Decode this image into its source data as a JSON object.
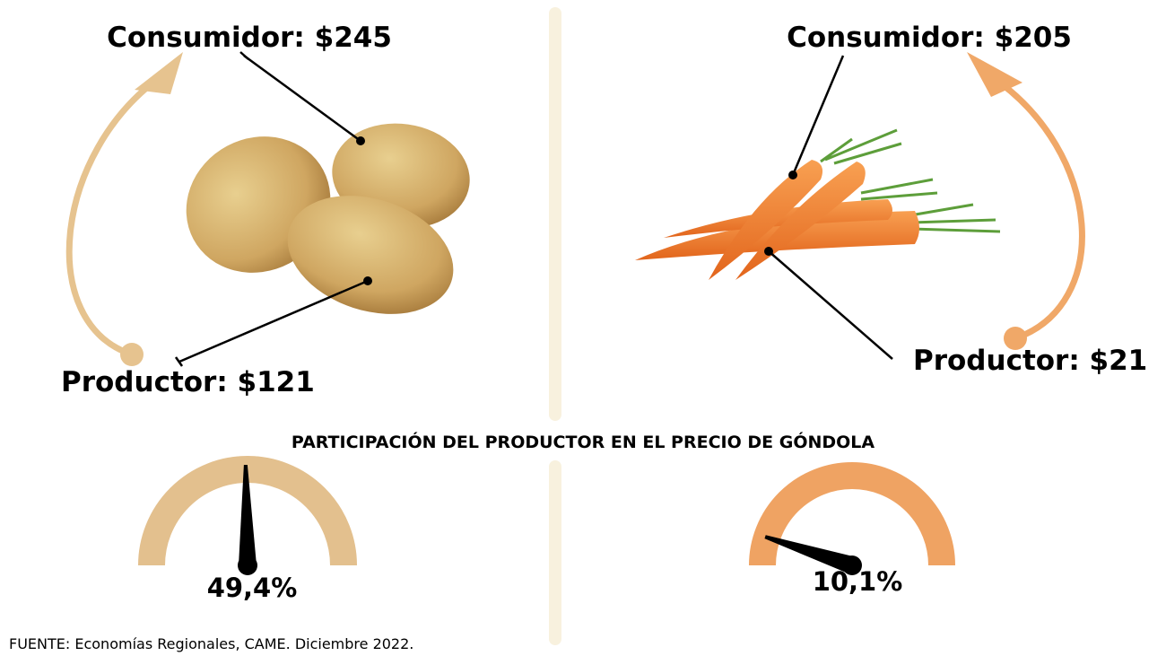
{
  "potato": {
    "consumer": "Consumidor: $245",
    "producer": "Productor: $121"
  },
  "carrot": {
    "consumer": "Consumidor: $205",
    "producer": "Productor: $21"
  },
  "gauge_title": "PARTICIPACIÓN DEL PRODUCTOR EN EL PRECIO DE GÓNDOLA",
  "gauges": [
    {
      "value": 49.4,
      "value_label": "49,4%",
      "color": "#e3c08e",
      "range": [
        0,
        100
      ]
    },
    {
      "value": 10.1,
      "value_label": "10,1%",
      "color": "#efa363",
      "range": [
        0,
        100
      ]
    }
  ],
  "source": "FUENTE: Economías Regionales, CAME. Diciembre 2022."
}
